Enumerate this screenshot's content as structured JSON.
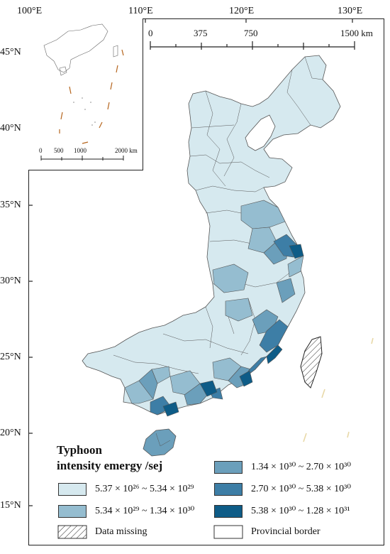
{
  "map": {
    "lon_ticks": [
      "100°E",
      "110°E",
      "120°E",
      "130°E"
    ],
    "lat_ticks": [
      "45°N",
      "40°N",
      "35°N",
      "30°N",
      "25°N",
      "20°N",
      "15°N"
    ],
    "scale_main": {
      "labels": [
        "0",
        "375",
        "750",
        "1500 km"
      ]
    },
    "scale_inset": {
      "labels": [
        "0",
        "500",
        "1000",
        "2000 km"
      ]
    },
    "colors": {
      "class1": "#d6e9ef",
      "class2": "#95bdd0",
      "class3": "#6b9fbb",
      "class4": "#3d7ea6",
      "class5": "#0e5c87",
      "border": "#555555",
      "missing_hatch": "#222222",
      "inset_dash": "#b5651d",
      "sea_islands": "#e8d9a8"
    }
  },
  "legend": {
    "title_line1": "Typhoon",
    "title_line2": "intensity emergy /sej",
    "items": [
      {
        "label": "5.37 × 10²⁶ ~ 5.34 × 10²⁹"
      },
      {
        "label": "5.34 × 10²⁹ ~ 1.34 × 10³⁰"
      },
      {
        "label": "1.34 × 10³⁰ ~ 2.70 × 10³⁰"
      },
      {
        "label": "2.70 × 10³⁰ ~ 5.38 × 10³⁰"
      },
      {
        "label": "5.38 × 10³⁰ ~ 1.28 × 10³¹"
      },
      {
        "label": "Data missing"
      },
      {
        "label": "Provincial border"
      }
    ]
  }
}
